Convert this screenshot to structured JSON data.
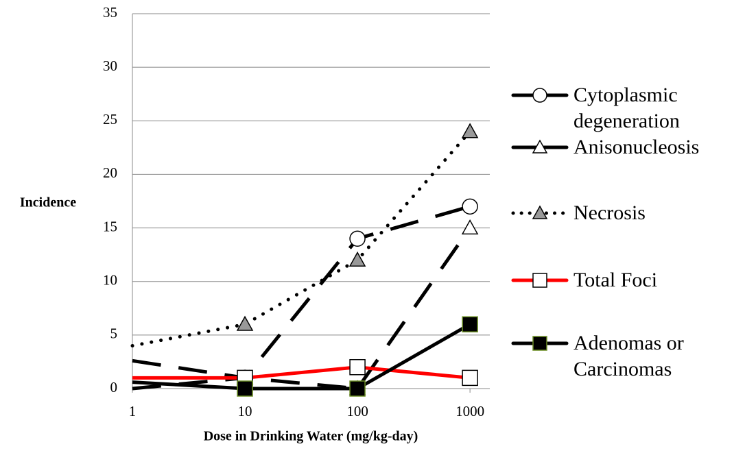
{
  "chart_data": {
    "type": "line",
    "x_label": "Dose in Drinking Water (mg/kg-day)",
    "y_label": "Incidence",
    "x": [
      1,
      10,
      100,
      1000
    ],
    "xlim": [
      1,
      1500
    ],
    "xticks": [
      1,
      10,
      100,
      1000
    ],
    "x_log": true,
    "ylim": [
      0,
      35
    ],
    "yticks": [
      0,
      5,
      10,
      15,
      20,
      25,
      30,
      35
    ],
    "grid": true,
    "series": [
      {
        "name": "Cytoplasmic degeneration",
        "color": "#000000",
        "line_style": "dashed",
        "marker": "circle",
        "marker_fill": "#ffffff",
        "values": [
          0,
          1,
          14,
          17
        ]
      },
      {
        "name": "Anisonucleosis",
        "color": "#000000",
        "line_style": "dashed",
        "marker": "triangle",
        "marker_fill": "#ffffff",
        "values": [
          2.6,
          1,
          0,
          15
        ]
      },
      {
        "name": "Necrosis",
        "color": "#000000",
        "line_style": "dotted",
        "marker": "triangle",
        "marker_fill": "#999999",
        "values": [
          4,
          6,
          12,
          24
        ]
      },
      {
        "name": "Total Foci",
        "color": "#ff0000",
        "line_style": "solid",
        "marker": "square",
        "marker_fill": "#ffffff",
        "values": [
          1,
          1,
          2,
          1
        ]
      },
      {
        "name": "Adenomas or Carcinomas",
        "color": "#000000",
        "line_style": "solid",
        "marker": "square",
        "marker_fill": "#000000",
        "values": [
          0.6,
          0,
          0,
          6
        ]
      }
    ]
  }
}
